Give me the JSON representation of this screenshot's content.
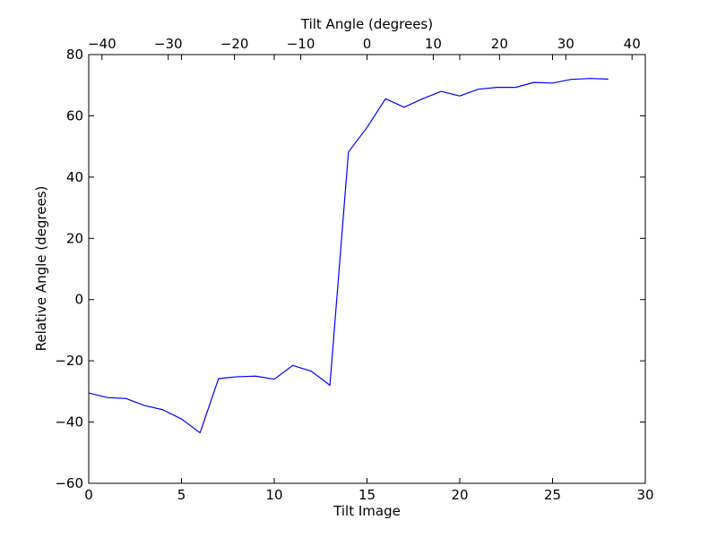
{
  "chart_data": {
    "type": "line",
    "xlabel": "Tilt Image",
    "ylabel": "Relative Angle (degrees)",
    "top_xlabel": "Tilt Angle (degrees)",
    "xlim": [
      0,
      30
    ],
    "ylim": [
      -60,
      80
    ],
    "top_xlim": [
      -42,
      42
    ],
    "x_ticks": [
      0,
      5,
      10,
      15,
      20,
      25,
      30
    ],
    "y_ticks": [
      -60,
      -40,
      -20,
      0,
      20,
      40,
      60,
      80
    ],
    "top_x_ticks": [
      -40,
      -30,
      -20,
      -10,
      0,
      10,
      20,
      30,
      40
    ],
    "grid": false,
    "line_color": "#0000ff",
    "series": [
      {
        "x": [
          0,
          1,
          2,
          3,
          4,
          5,
          6,
          7,
          8,
          9,
          10,
          11,
          12,
          13,
          14,
          15,
          16,
          17,
          18,
          19,
          20,
          21,
          22,
          23,
          24,
          25,
          26,
          27,
          28
        ],
        "values": [
          -30.5,
          -32,
          -32.3,
          -34.6,
          -36,
          -39,
          -43.5,
          -25.8,
          -25.2,
          -25,
          -26,
          -21.5,
          -23.4,
          -28,
          48.2,
          56.2,
          65.6,
          62.8,
          65.6,
          68,
          66.5,
          68.7,
          69.3,
          69.3,
          70.9,
          70.7,
          71.9,
          72.2,
          72
        ]
      }
    ]
  }
}
